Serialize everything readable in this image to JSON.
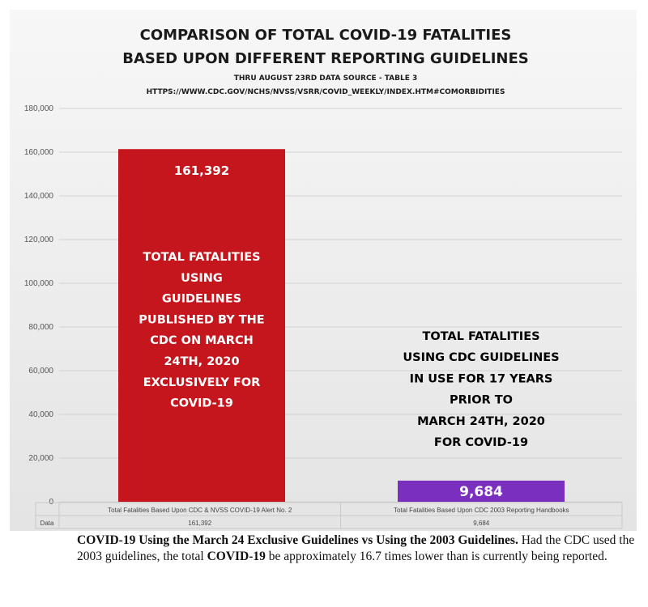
{
  "chart_data": {
    "type": "bar",
    "title_lines": [
      "COMPARISON OF TOTAL COVID-19 FATALITIES",
      "BASED UPON DIFFERENT REPORTING GUIDELINES"
    ],
    "subtitle_lines": [
      "THRU AUGUST 23RD DATA SOURCE - TABLE 3",
      "HTTPS://WWW.CDC.GOV/NCHS/NVSS/VSRR/COVID_WEEKLY/INDEX.HTM#COMORBIDITIES"
    ],
    "ylim": [
      0,
      180000
    ],
    "yticks": [
      "0",
      "20,000",
      "40,000",
      "60,000",
      "80,000",
      "100,000",
      "120,000",
      "140,000",
      "160,000",
      "180,000"
    ],
    "ytick_values": [
      0,
      20000,
      40000,
      60000,
      80000,
      100000,
      120000,
      140000,
      160000,
      180000
    ],
    "categories": [
      "Total Fatalities Based Upon CDC & NVSS COVID-19 Alert No. 2",
      "Total Fatalities Based Upon CDC 2003 Reporting Handbooks"
    ],
    "values": [
      161392,
      9684
    ],
    "value_labels": [
      "161,392",
      "9,684"
    ],
    "colors": [
      "#c4161c",
      "#7b2fbf"
    ],
    "table_row_label": "Data",
    "table_values": [
      "161,392",
      "9,684"
    ],
    "annotations": [
      [
        "TOTAL FATALITIES",
        "USING",
        "GUIDELINES",
        "PUBLISHED BY THE",
        "CDC ON MARCH",
        "24TH, 2020",
        "EXCLUSIVELY FOR",
        "COVID-19"
      ],
      [
        "TOTAL FATALITIES",
        "USING CDC GUIDELINES",
        "IN USE FOR 17 YEARS",
        "PRIOR TO",
        "MARCH 24TH, 2020",
        "FOR COVID-19"
      ]
    ]
  },
  "caption": {
    "bold_1": "COVID-19 Using the March 24 Exclusive Guidelines vs Using the 2003 Guidelines.",
    "text_1": " Had the CDC used the 2003 guidelines, the total ",
    "bold_2": "COVID-19",
    "text_2": " be approximately 16.7 times lower than is currently being reported."
  }
}
